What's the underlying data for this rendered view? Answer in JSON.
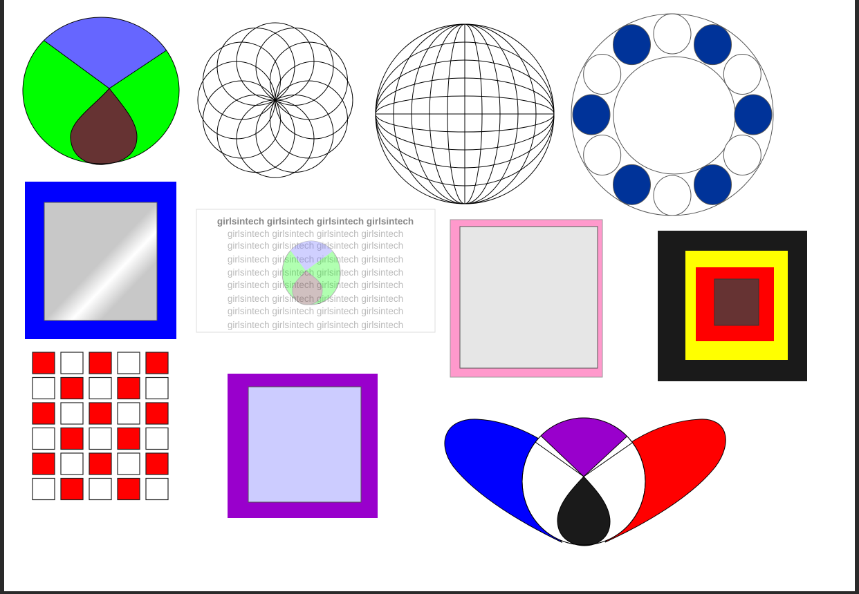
{
  "watermark": {
    "word": "girlsintech",
    "repeat_per_line": 4,
    "line_count": 9
  },
  "colors": {
    "background": "#ffffff",
    "blue": "#0000ff",
    "periwinkle": "#6666ff",
    "green": "#00ff00",
    "brown": "#663333",
    "navy_dot": "#003399",
    "pink": "#ff99cc",
    "light_gray": "#e6e6e6",
    "black": "#1a1a1a",
    "yellow": "#ffff00",
    "red": "#ff0000",
    "purple": "#9900cc",
    "lavender": "#ccccff"
  },
  "checkerboard": {
    "rows": 6,
    "cols": 5
  },
  "ring_dots": {
    "count": 12
  },
  "spirograph": {
    "circle_count": 12
  }
}
